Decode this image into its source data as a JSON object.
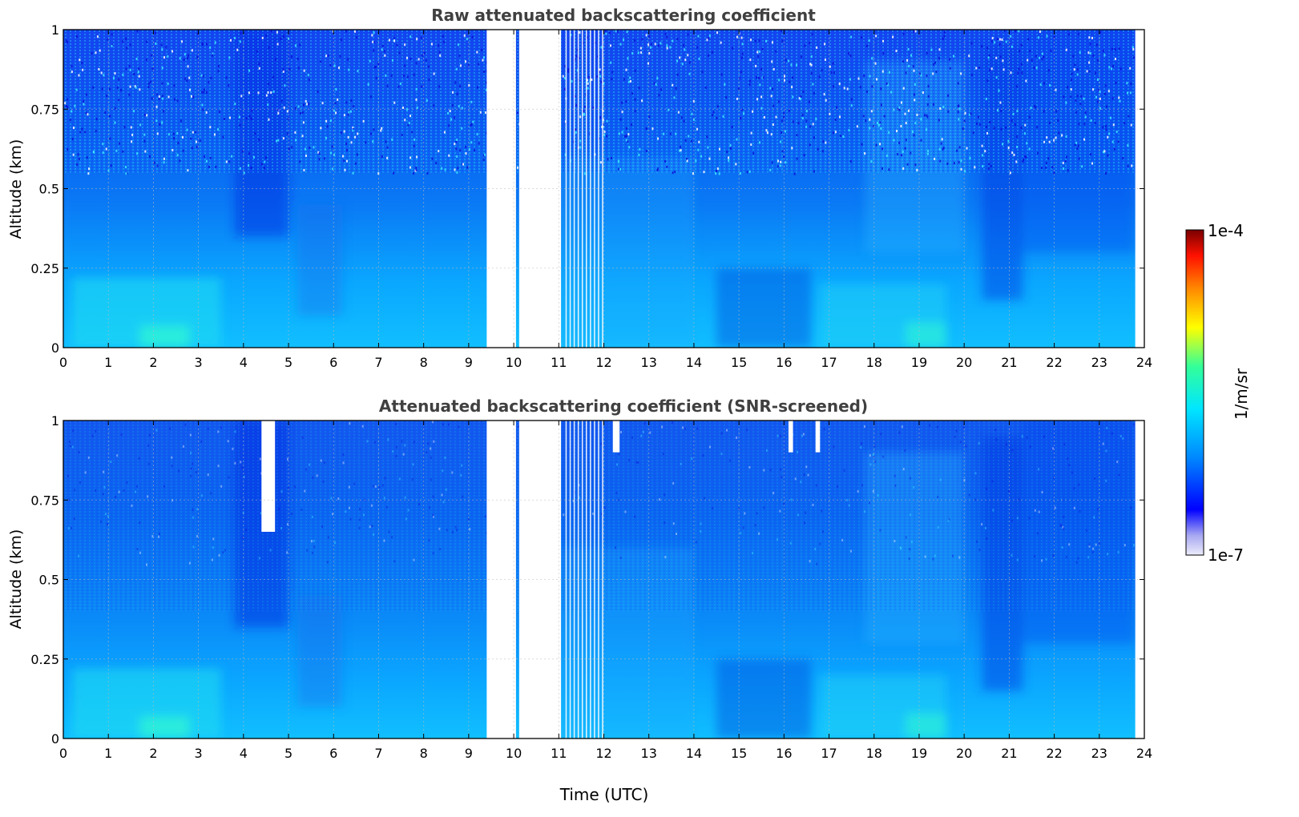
{
  "chart_data": [
    {
      "type": "heatmap",
      "title": "Raw attenuated backscattering coefficient",
      "xlabel": "",
      "ylabel": "Altitude (km)",
      "xlim": [
        0,
        24
      ],
      "ylim": [
        0,
        1
      ],
      "x_ticks": [
        "0",
        "1",
        "2",
        "3",
        "4",
        "5",
        "6",
        "7",
        "8",
        "9",
        "10",
        "11",
        "12",
        "13",
        "14",
        "15",
        "16",
        "17",
        "18",
        "19",
        "20",
        "21",
        "22",
        "23",
        "24"
      ],
      "y_ticks": [
        "0",
        "0.25",
        "0.5",
        "0.75",
        "1"
      ],
      "grid": true,
      "data_gaps_utc": [
        [
          9.4,
          10.05
        ],
        [
          10.12,
          11.05
        ]
      ],
      "data_end_utc": 23.8,
      "features": "Boundary layer aerosol below ~0.3 km; dark-blue low-backscatter columns near 4-5, 14.5-16 and 20.5-21 UTC"
    },
    {
      "type": "heatmap",
      "title": "Attenuated backscattering coefficient (SNR-screened)",
      "xlabel": "Time (UTC)",
      "ylabel": "Altitude (km)",
      "xlim": [
        0,
        24
      ],
      "ylim": [
        0,
        1
      ],
      "x_ticks": [
        "0",
        "1",
        "2",
        "3",
        "4",
        "5",
        "6",
        "7",
        "8",
        "9",
        "10",
        "11",
        "12",
        "13",
        "14",
        "15",
        "16",
        "17",
        "18",
        "19",
        "20",
        "21",
        "22",
        "23",
        "24"
      ],
      "y_ticks": [
        "0",
        "0.25",
        "0.5",
        "0.75",
        "1"
      ],
      "grid": true,
      "data_gaps_utc": [
        [
          9.4,
          10.05
        ],
        [
          10.12,
          11.05
        ]
      ],
      "data_end_utc": 23.8,
      "screened_patches_utc": [
        [
          4.4,
          4.7
        ],
        [
          12.2,
          12.35
        ],
        [
          16.1,
          16.2
        ],
        [
          16.7,
          16.8
        ]
      ]
    }
  ],
  "colorbar": {
    "label": "1/m/sr",
    "max_label": "1e-4",
    "min_label": "1e-7",
    "scale": "log",
    "colormap": [
      "#e8e8f8",
      "#b0b0f0",
      "#0000ff",
      "#0080ff",
      "#00e0ff",
      "#00ff80",
      "#ffff00",
      "#ff8000",
      "#ff0000",
      "#800000"
    ]
  }
}
